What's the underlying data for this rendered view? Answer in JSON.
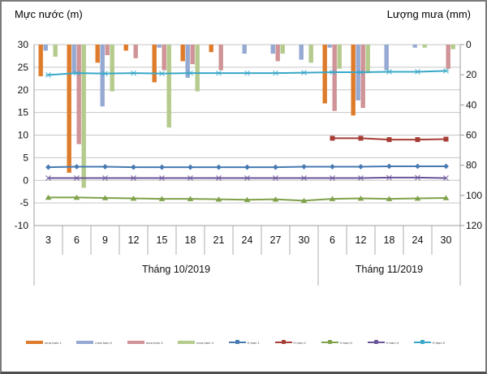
{
  "titles": {
    "left": "Mực nước (m)",
    "right": "Lượng mưa (mm)"
  },
  "chart_data": {
    "type": "combo-bar-line",
    "categories": [
      "3",
      "6",
      "9",
      "12",
      "15",
      "18",
      "21",
      "24",
      "27",
      "30",
      "6",
      "12",
      "18",
      "24",
      "30"
    ],
    "month_groups": [
      {
        "label": "Tháng 10/2019",
        "span": 10
      },
      {
        "label": "Tháng 11/2019",
        "span": 5
      }
    ],
    "left_axis": {
      "label": "Mực nước (m)",
      "min": -10,
      "max": 30,
      "ticks": [
        30,
        25,
        20,
        15,
        10,
        5,
        0,
        -5,
        -10
      ]
    },
    "right_axis": {
      "label": "Lượng mưa (mm)",
      "min": 0,
      "max": 120,
      "inverted": true,
      "ticks": [
        0,
        20,
        40,
        60,
        80,
        100,
        120
      ]
    },
    "grid": true,
    "legend_position": "bottom",
    "bar_series": [
      {
        "name": "mưa trạm 1",
        "color": "#DE7C2B",
        "values": [
          21,
          85,
          12,
          4,
          25,
          11,
          5,
          0,
          0,
          0,
          39,
          47,
          0,
          0,
          0
        ]
      },
      {
        "name": "mưa trạm 2",
        "color": "#95A9D3",
        "values": [
          4,
          19,
          41,
          0,
          2,
          22,
          0,
          6,
          6,
          10,
          2,
          37,
          17,
          2,
          0
        ]
      },
      {
        "name": "mưa trạm 3",
        "color": "#D09397",
        "values": [
          0,
          66,
          7,
          9,
          17,
          13,
          17,
          0,
          11,
          0,
          44,
          42,
          0,
          0,
          16
        ]
      },
      {
        "name": "mưa trạm 4",
        "color": "#B5CA8D",
        "values": [
          8,
          95,
          31,
          0,
          55,
          31,
          0,
          0,
          6,
          12,
          16,
          19,
          0,
          2,
          3
        ]
      }
    ],
    "line_series": [
      {
        "name": "H trạm 1",
        "color": "#4679B2",
        "marker": "diamond",
        "values": [
          2.9,
          3.0,
          3.0,
          2.9,
          2.9,
          2.9,
          2.9,
          2.9,
          2.9,
          3.0,
          3.0,
          3.0,
          3.1,
          3.1,
          3.1
        ]
      },
      {
        "name": "H trạm 2",
        "color": "#A63E36",
        "marker": "square",
        "values": [
          null,
          null,
          null,
          null,
          null,
          null,
          null,
          null,
          null,
          null,
          9.3,
          9.3,
          9.0,
          9.0,
          9.1
        ]
      },
      {
        "name": "H trạm 3",
        "color": "#7FA14A",
        "marker": "triangle",
        "values": [
          -3.8,
          -3.8,
          -3.9,
          -4.0,
          -4.1,
          -4.1,
          -4.2,
          -4.3,
          -4.2,
          -4.5,
          -4.1,
          -4.0,
          -4.1,
          -4.0,
          -3.9
        ]
      },
      {
        "name": "H trạm 4",
        "color": "#6A5399",
        "marker": "xmark",
        "values": [
          0.5,
          0.5,
          0.5,
          0.5,
          0.5,
          0.5,
          0.5,
          0.5,
          0.5,
          0.5,
          0.5,
          0.5,
          0.6,
          0.6,
          0.5
        ]
      },
      {
        "name": "H trạm 5",
        "color": "#38A7C8",
        "marker": "star",
        "values": [
          23.3,
          23.7,
          23.6,
          23.7,
          23.6,
          23.7,
          23.7,
          23.7,
          23.7,
          23.8,
          23.9,
          23.9,
          24.0,
          24.0,
          24.2
        ]
      }
    ]
  },
  "style_colors": {
    "gridline": "#C6C6C6",
    "axis_line": "#9B9B9B",
    "band_line": "#ACACAC",
    "text": "#111111"
  }
}
